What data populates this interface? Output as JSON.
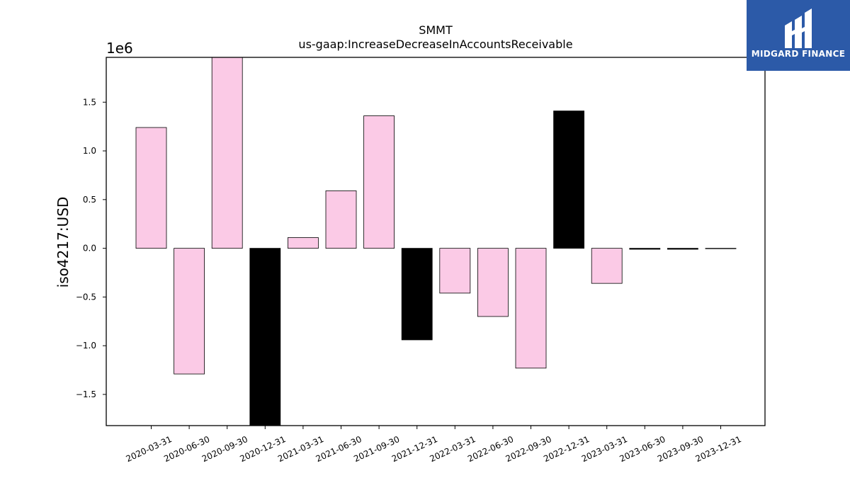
{
  "chart_data": {
    "type": "bar",
    "title": "SMMT",
    "subtitle": "us-gaap:IncreaseDecreaseInAccountsReceivable",
    "xlabel": "",
    "ylabel": "iso4217:USD",
    "y_scale_label": "1e6",
    "ylim": [
      -1.82,
      1.96
    ],
    "yticks": [
      -1.5,
      -1.0,
      -0.5,
      0.0,
      0.5,
      1.0,
      1.5
    ],
    "ytick_labels": [
      "−1.5",
      "−1.0",
      "−0.5",
      "0.0",
      "0.5",
      "1.0",
      "1.5"
    ],
    "categories": [
      "2020-03-31",
      "2020-06-30",
      "2020-09-30",
      "2020-12-31",
      "2021-03-31",
      "2021-06-30",
      "2021-09-30",
      "2021-12-31",
      "2022-03-31",
      "2022-06-30",
      "2022-09-30",
      "2022-12-31",
      "2023-03-31",
      "2023-06-30",
      "2023-09-30",
      "2023-12-31"
    ],
    "values": [
      1.24,
      -1.29,
      1.96,
      -1.82,
      0.11,
      0.59,
      1.36,
      -0.94,
      -0.46,
      -0.7,
      -1.23,
      1.41,
      -0.36,
      -0.01,
      -0.01,
      0.0
    ],
    "bar_colors": [
      "#fbcae6",
      "#fbcae6",
      "#fbcae6",
      "#000000",
      "#fbcae6",
      "#fbcae6",
      "#fbcae6",
      "#000000",
      "#fbcae6",
      "#fbcae6",
      "#fbcae6",
      "#000000",
      "#fbcae6",
      "#000000",
      "#000000",
      "#000000"
    ],
    "grid": false,
    "legend": "none"
  },
  "brand": {
    "name": "MIDGARD FINANCE",
    "background": "#2c5aa8"
  }
}
